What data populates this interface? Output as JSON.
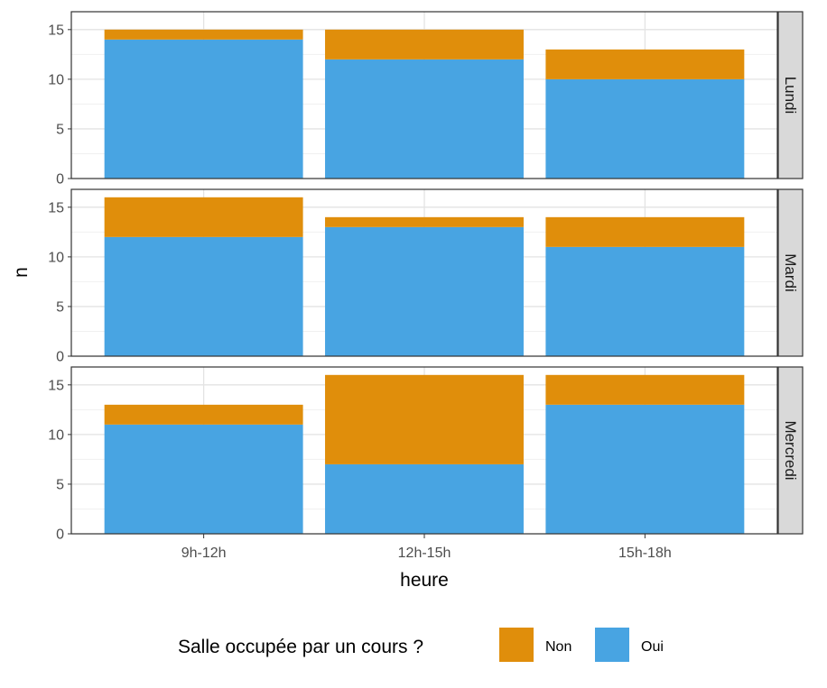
{
  "chart_data": {
    "type": "bar",
    "stacked": true,
    "facet_by": "row",
    "xlabel": "heure",
    "ylabel": "n",
    "categories": [
      "9h-12h",
      "12h-15h",
      "15h-18h"
    ],
    "ylim": [
      0,
      16.8
    ],
    "yticks": [
      0,
      5,
      10,
      15
    ],
    "grid": true,
    "legend": {
      "title": "Salle occupée par un cours ?",
      "placement": "bottom",
      "entries": [
        {
          "name": "Non",
          "color": "#E08E0B"
        },
        {
          "name": "Oui",
          "color": "#48A4E2"
        }
      ]
    },
    "panels": [
      {
        "label": "Lundi",
        "series": [
          {
            "name": "Oui",
            "values": [
              14,
              12,
              10
            ]
          },
          {
            "name": "Non",
            "values": [
              1,
              3,
              3
            ]
          }
        ]
      },
      {
        "label": "Mardi",
        "series": [
          {
            "name": "Oui",
            "values": [
              12,
              13,
              11
            ]
          },
          {
            "name": "Non",
            "values": [
              4,
              1,
              3
            ]
          }
        ]
      },
      {
        "label": "Mercredi",
        "series": [
          {
            "name": "Oui",
            "values": [
              11,
              7,
              13
            ]
          },
          {
            "name": "Non",
            "values": [
              2,
              9,
              3
            ]
          }
        ]
      }
    ]
  }
}
